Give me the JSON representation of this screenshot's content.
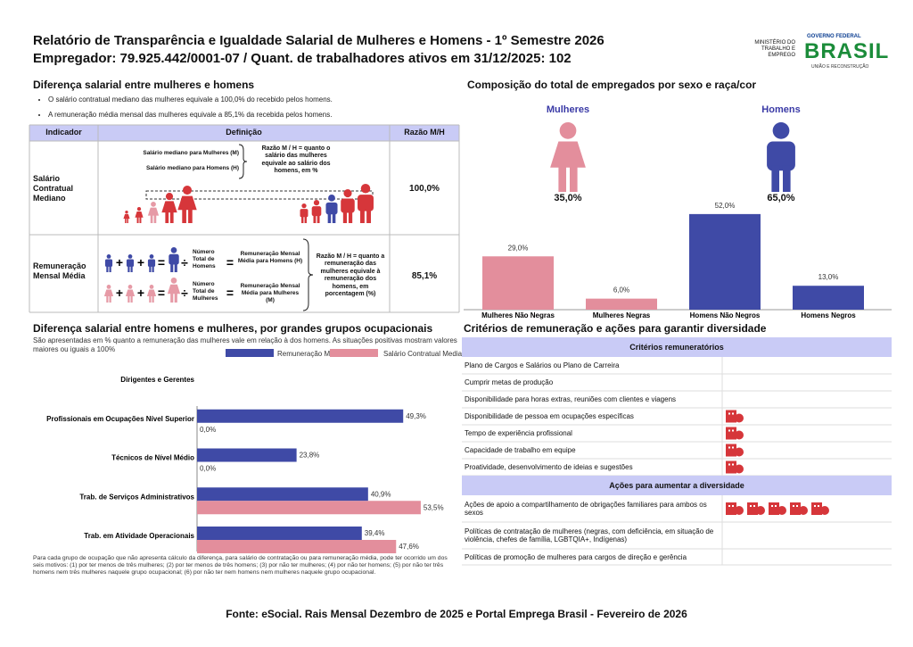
{
  "header": {
    "title": "Relatório de Transparência e Igualdade Salarial de Mulheres e Homens - 1º Semestre 2026",
    "subtitle": "Empregador: 79.925.442/0001-07 / Quant. de trabalhadores ativos em 31/12/2025: 102",
    "ministry": "MINISTÉRIO DO TRABALHO E EMPREGO",
    "government": "GOVERNO FEDERAL",
    "country": "BRASIL",
    "slogan": "UNIÃO E RECONSTRUÇÃO"
  },
  "salary_gap": {
    "title": "Diferença salarial entre mulheres e homens",
    "bullets": [
      "O salário contratual mediano das mulheres equivale a 100,0% do recebido pelos homens.",
      "A remuneração média mensal das mulheres equivale a 85,1% da recebida pelos homens."
    ],
    "table": {
      "headers": [
        "Indicador",
        "Definição",
        "Razão M/H"
      ],
      "operators": [
        "+",
        "÷",
        "="
      ],
      "rows": [
        {
          "indicator": "Salário Contratual Mediano",
          "women": "Salário mediano para Mulheres (M)",
          "men": "Salário mediano para Homens (H)",
          "ratio_definition": "Razão M / H = quanto o salário das mulheres equivale ao salário dos homens, em %",
          "value": "100,0%"
        },
        {
          "indicator": "Remuneração Mensal Média",
          "men_count": "Número Total de Homens",
          "men": "Remuneração Mensal Média para Homens (H)",
          "women_count": "Número Total de Mulheres",
          "women": "Remuneração Mensal Média para Mulheres (M)",
          "ratio_definition": "Razão M / H = quanto a remuneração das mulheres equivale à remuneração dos homens, em porcentagem (%)",
          "value": "85,1%"
        }
      ]
    }
  },
  "composition": {
    "women": {
      "label": "Mulheres",
      "share": "35,0%"
    },
    "men": {
      "label": "Homens",
      "share": "65,0%"
    }
  },
  "chart_data": [
    {
      "type": "bar",
      "title": "Composição do total de empregados por sexo e raça/cor",
      "categories": [
        "Mulheres Não Negras",
        "Mulheres Negras",
        "Homens Não Negros",
        "Homens Negros"
      ],
      "values": [
        29,
        6,
        52,
        13
      ],
      "value_labels": [
        "29,0%",
        "6,0%",
        "52,0%",
        "13,0%"
      ],
      "colors": [
        "#e38e9c",
        "#e38e9c",
        "#3f4aa6",
        "#3f4aa6"
      ]
    },
    {
      "type": "hbar",
      "title": "Diferença salarial entre homens e mulheres, por grandes grupos ocupacionais",
      "subtitle": "São apresentadas em % quanto a remuneração das mulheres vale em relação à dos homens. As situações positivas mostram valores maiores ou iguais a 100%",
      "categories": [
        "Dirigentes e Gerentes",
        "Profissionais em Ocupações Nível Superior",
        "Técnicos de Nível Médio",
        "Trab. de Serviços Administrativos",
        "Trab. em Atividade Operacionais"
      ],
      "series": [
        {
          "name": "Remuneração Mensal Média",
          "color": "#3f4aa6",
          "values": [
            null,
            49.3,
            23.8,
            40.9,
            39.4
          ],
          "value_labels": [
            null,
            "49,3%",
            "23,8%",
            "40,9%",
            "39,4%"
          ]
        },
        {
          "name": "Salário Contratual Mediano",
          "color": "#e38e9c",
          "values": [
            null,
            0,
            0,
            53.5,
            47.6
          ],
          "value_labels": [
            null,
            "0,0%",
            "0,0%",
            "53,5%",
            "47,6%"
          ]
        }
      ],
      "note": "Para cada grupo de ocupação que não apresenta cálculo da diferença, para salário de contratação ou para remuneração média, pode ter ocorrido um dos seis motivos: (1) por ter menos de três mulheres; (2) por ter menos de três homens; (3) por não ter mulheres; (4) por não ter homens; (5) por não ter três homens nem três mulheres naquele grupo ocupacional; (6) por não ter nem homens nem mulheres naquele grupo ocupacional."
    }
  ],
  "criteria": {
    "title": "Critérios de remuneração e ações para garantir diversidade",
    "groups": [
      {
        "heading": "Critérios remuneratórios",
        "items": [
          {
            "label": "Plano de Cargos e Salários ou Plano de Carreira",
            "icons": 0
          },
          {
            "label": "Cumprir metas de produção",
            "icons": 0
          },
          {
            "label": "Disponibilidade para horas extras, reuniões com clientes e viagens",
            "icons": 0
          },
          {
            "label": "Disponibilidade de pessoa em ocupações específicas",
            "icons": 1
          },
          {
            "label": "Tempo de experiência profissional",
            "icons": 1
          },
          {
            "label": "Capacidade de trabalho em equipe",
            "icons": 1
          },
          {
            "label": "Proatividade, desenvolvimento de ideias e sugestões",
            "icons": 1
          }
        ]
      },
      {
        "heading": "Ações para aumentar a diversidade",
        "items": [
          {
            "label": "Ações de apoio a compartilhamento de obrigações familiares para ambos os sexos",
            "icons": 5
          },
          {
            "label": "Políticas de contratação de mulheres (negras, com deficiência, em situação de violência, chefes de família, LGBTQIA+, Indígenas)",
            "icons": 0
          },
          {
            "label": "Políticas de promoção de mulheres para cargos de direção e gerência",
            "icons": 0
          }
        ]
      }
    ]
  },
  "source": "Fonte: eSocial. Rais Mensal Dezembro de 2025 e Portal Emprega Brasil - Fevereiro de 2026"
}
